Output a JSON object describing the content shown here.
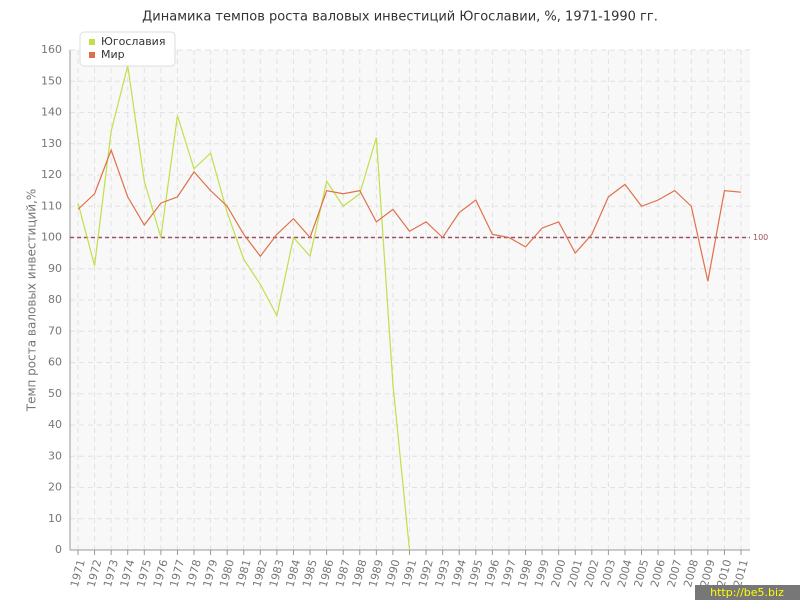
{
  "chart_data": {
    "type": "line",
    "title": "Динамика темпов роста валовых инвестиций Югославии, %, 1971-1990 гг.",
    "y_label": "Темп роста валовых инвестиций,%",
    "categories": [
      "1971",
      "1972",
      "1973",
      "1974",
      "1975",
      "1976",
      "1977",
      "1978",
      "1979",
      "1980",
      "1981",
      "1982",
      "1983",
      "1984",
      "1985",
      "1986",
      "1987",
      "1988",
      "1989",
      "1990",
      "1991",
      "1992",
      "1993",
      "1994",
      "1995",
      "1996",
      "1997",
      "1998",
      "1999",
      "2000",
      "2001",
      "2002",
      "2003",
      "2004",
      "2005",
      "2006",
      "2007",
      "2008",
      "2009",
      "2010",
      "2011"
    ],
    "series": [
      {
        "name": "Югославия",
        "color": "#bfe04a",
        "values": [
          111,
          91,
          134,
          155,
          118,
          100,
          139,
          122,
          127,
          108,
          93,
          85,
          75,
          100,
          94,
          118,
          110,
          114,
          132,
          53,
          0,
          null,
          null,
          null,
          null,
          null,
          null,
          null,
          null,
          null,
          null,
          null,
          null,
          null,
          null,
          null,
          null,
          null,
          null,
          null,
          null
        ]
      },
      {
        "name": "Мир",
        "color": "#e0704a",
        "values": [
          109,
          114,
          128,
          113,
          104,
          111,
          113,
          121,
          115,
          110,
          101,
          94,
          101,
          106,
          100,
          115,
          114,
          115,
          105,
          109,
          102,
          105,
          100,
          108,
          112,
          101,
          100,
          97,
          103,
          105,
          95,
          101,
          113,
          117,
          110,
          112,
          115,
          110,
          86,
          115,
          114.5
        ]
      }
    ],
    "reference_line": 100,
    "ylim": [
      0,
      160
    ],
    "yticks": [
      0,
      10,
      20,
      30,
      40,
      50,
      60,
      70,
      80,
      90,
      100,
      110,
      120,
      130,
      140,
      150,
      160
    ],
    "grid": true,
    "legend": "top-left",
    "watermark": "http://be5.biz"
  }
}
